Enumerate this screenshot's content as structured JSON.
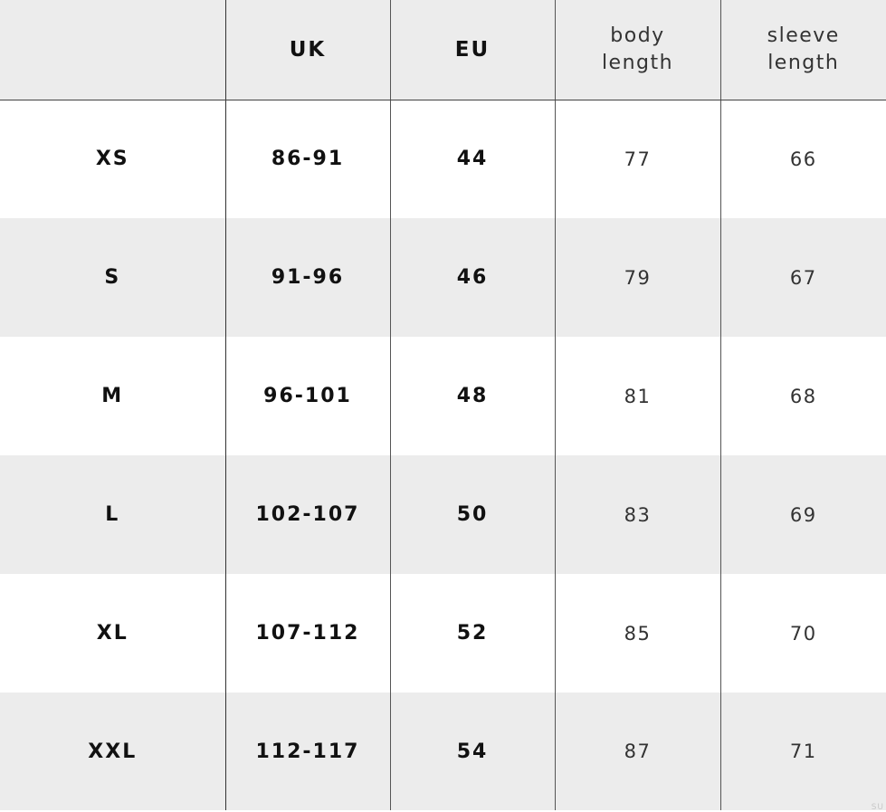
{
  "headers": [
    "",
    "UK",
    "EU",
    "body length",
    "sleeve length"
  ],
  "header_lines": {
    "body": [
      "body",
      "length"
    ],
    "sleeve": [
      "sleeve",
      "length"
    ]
  },
  "rows": [
    {
      "size": "XS",
      "uk": "86-91",
      "eu": "44",
      "body": "77",
      "sleeve": "66"
    },
    {
      "size": "S",
      "uk": "91-96",
      "eu": "46",
      "body": "79",
      "sleeve": "67"
    },
    {
      "size": "M",
      "uk": "96-101",
      "eu": "48",
      "body": "81",
      "sleeve": "68"
    },
    {
      "size": "L",
      "uk": "102-107",
      "eu": "50",
      "body": "83",
      "sleeve": "69"
    },
    {
      "size": "XL",
      "uk": "107-112",
      "eu": "52",
      "body": "85",
      "sleeve": "70"
    },
    {
      "size": "XXL",
      "uk": "112-117",
      "eu": "54",
      "body": "87",
      "sleeve": "71"
    }
  ],
  "watermark": "SU",
  "colors": {
    "stripe": "#ececec",
    "line": "#444444"
  }
}
